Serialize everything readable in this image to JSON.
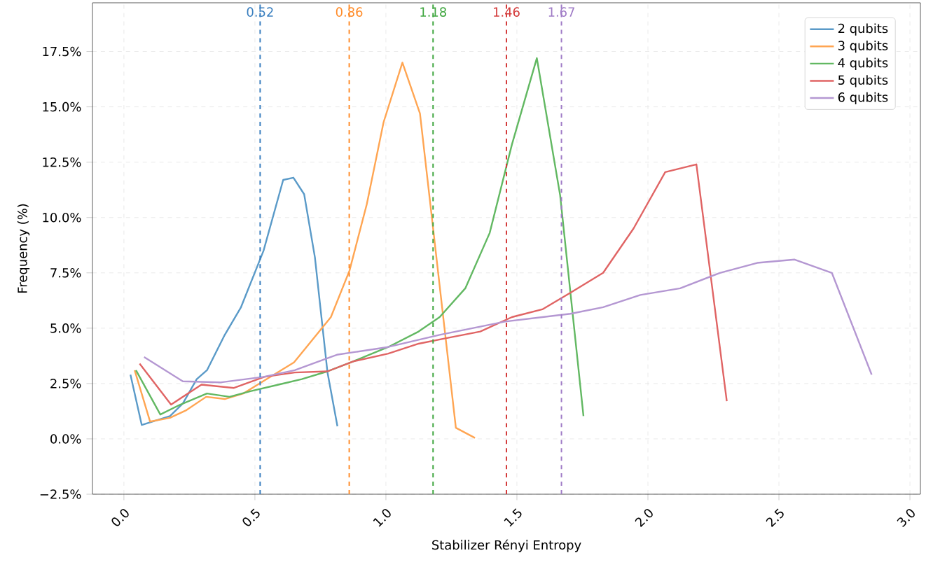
{
  "chart_data": {
    "type": "line",
    "xlabel": "Stabilizer Rényi Entropy",
    "ylabel": "Frequency (%)",
    "xlim": [
      -0.12,
      3.04
    ],
    "ylim": [
      -2.5,
      19.7
    ],
    "xticks": [
      {
        "value": 0,
        "label": "0.0"
      },
      {
        "value": 0.5,
        "label": "0.5"
      },
      {
        "value": 1,
        "label": "1.0"
      },
      {
        "value": 1.5,
        "label": "1.5"
      },
      {
        "value": 2,
        "label": "2.0"
      },
      {
        "value": 2.5,
        "label": "2.5"
      },
      {
        "value": 3,
        "label": "3.0"
      }
    ],
    "yticks": [
      {
        "value": -2.5,
        "label": "−2.5%"
      },
      {
        "value": 0,
        "label": "0.0%"
      },
      {
        "value": 2.5,
        "label": "2.5%"
      },
      {
        "value": 5,
        "label": "5.0%"
      },
      {
        "value": 7.5,
        "label": "7.5%"
      },
      {
        "value": 10,
        "label": "10.0%"
      },
      {
        "value": 12.5,
        "label": "12.5%"
      },
      {
        "value": 15,
        "label": "15.0%"
      },
      {
        "value": 17.5,
        "label": "17.5%"
      }
    ],
    "grid": true,
    "legend": "top right",
    "series": [
      {
        "name": "2 qubits",
        "color": "#5a9ac8",
        "x": [
          0.025,
          0.068,
          0.176,
          0.225,
          0.278,
          0.317,
          0.385,
          0.447,
          0.533,
          0.608,
          0.647,
          0.688,
          0.729,
          0.777,
          0.815
        ],
        "values": [
          2.9,
          0.63,
          1.03,
          1.6,
          2.7,
          3.1,
          4.7,
          5.95,
          8.5,
          11.7,
          11.8,
          11.05,
          8.2,
          3.0,
          0.57
        ]
      },
      {
        "name": "3 qubits",
        "color": "#ffa552",
        "x": [
          0.041,
          0.1,
          0.176,
          0.239,
          0.314,
          0.385,
          0.456,
          0.531,
          0.649,
          0.79,
          0.861,
          0.927,
          0.991,
          1.063,
          1.13,
          1.267,
          1.34
        ],
        "values": [
          3.1,
          0.78,
          0.95,
          1.3,
          1.9,
          1.8,
          2.05,
          2.6,
          3.45,
          5.5,
          7.6,
          10.6,
          14.3,
          17.0,
          14.7,
          0.5,
          0.04
        ]
      },
      {
        "name": "4 qubits",
        "color": "#62b862",
        "x": [
          0.046,
          0.139,
          0.207,
          0.317,
          0.403,
          0.483,
          0.59,
          0.679,
          0.777,
          0.875,
          1.009,
          1.125,
          1.205,
          1.303,
          1.396,
          1.481,
          1.576,
          1.665,
          1.754
        ],
        "values": [
          3.1,
          1.1,
          1.5,
          2.05,
          1.9,
          2.15,
          2.45,
          2.7,
          3.05,
          3.5,
          4.15,
          4.85,
          5.5,
          6.8,
          9.3,
          13.3,
          17.2,
          11.0,
          1.03
        ]
      },
      {
        "name": "5 qubits",
        "color": "#e06464",
        "x": [
          0.06,
          0.18,
          0.296,
          0.42,
          0.536,
          0.652,
          0.777,
          0.875,
          1.009,
          1.125,
          1.23,
          1.36,
          1.481,
          1.597,
          1.704,
          1.829,
          1.945,
          2.066,
          2.185,
          2.301
        ],
        "values": [
          3.4,
          1.55,
          2.45,
          2.3,
          2.8,
          3.0,
          3.05,
          3.5,
          3.85,
          4.3,
          4.55,
          4.85,
          5.5,
          5.85,
          6.6,
          7.5,
          9.5,
          12.05,
          12.4,
          1.7
        ]
      },
      {
        "name": "6 qubits",
        "color": "#b497d2",
        "x": [
          0.077,
          0.225,
          0.367,
          0.533,
          0.652,
          0.813,
          1.009,
          1.205,
          1.455,
          1.704,
          1.829,
          1.971,
          2.123,
          2.275,
          2.417,
          2.56,
          2.702,
          2.854
        ],
        "values": [
          3.7,
          2.6,
          2.55,
          2.8,
          3.1,
          3.8,
          4.15,
          4.7,
          5.3,
          5.65,
          5.95,
          6.5,
          6.8,
          7.5,
          7.95,
          8.1,
          7.5,
          2.9
        ]
      }
    ],
    "ref_lines": [
      {
        "axis": "x",
        "value": 0.52,
        "label": "0.52",
        "color": "#3a7fbf",
        "line_style": "dashed"
      },
      {
        "axis": "x",
        "value": 0.86,
        "label": "0.86",
        "color": "#ff8c2a",
        "line_style": "dashed"
      },
      {
        "axis": "x",
        "value": 1.18,
        "label": "1.18",
        "color": "#3fa63f",
        "line_style": "dashed"
      },
      {
        "axis": "x",
        "value": 1.46,
        "label": "1.46",
        "color": "#d43c3c",
        "line_style": "dashed"
      },
      {
        "axis": "x",
        "value": 1.67,
        "label": "1.67",
        "color": "#9f7bc6",
        "line_style": "dashed"
      }
    ]
  }
}
